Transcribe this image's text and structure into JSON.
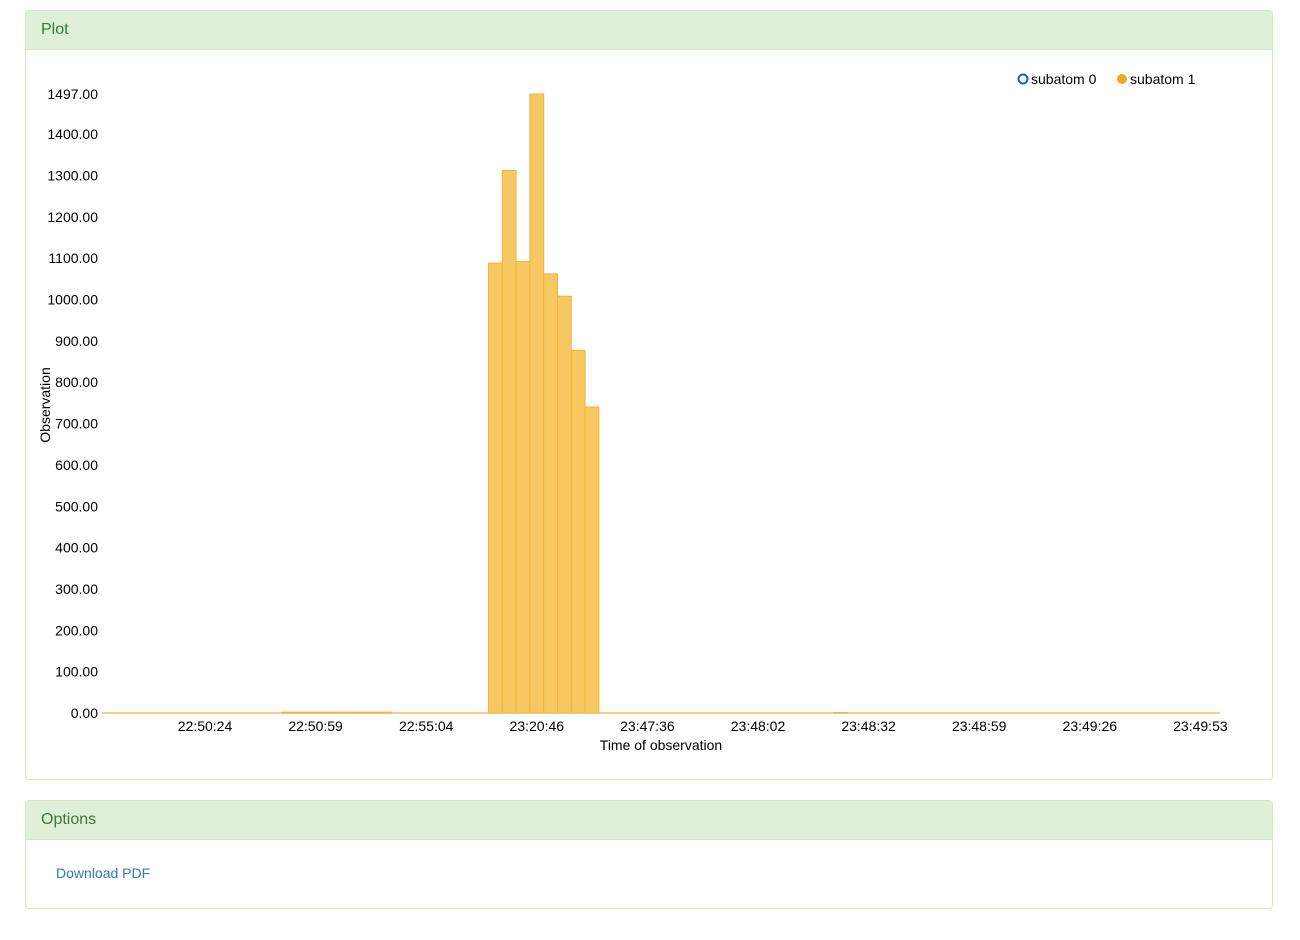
{
  "plot_panel": {
    "title": "Plot"
  },
  "options_panel": {
    "title": "Options",
    "download_label": "Download PDF"
  },
  "chart_data": {
    "type": "bar",
    "xlabel": "Time of observation",
    "ylabel": "Observation",
    "ylim": [
      0,
      1497
    ],
    "y_ticks": [
      0,
      100,
      200,
      300,
      400,
      500,
      600,
      700,
      800,
      900,
      1000,
      1100,
      1200,
      1300,
      1400,
      1497
    ],
    "y_tick_labels": [
      "0.00",
      "100.00",
      "200.00",
      "300.00",
      "400.00",
      "500.00",
      "600.00",
      "700.00",
      "800.00",
      "900.00",
      "1000.00",
      "1100.00",
      "1200.00",
      "1300.00",
      "1400.00",
      "1497.00"
    ],
    "x_tick_labels": [
      "22:50:24",
      "22:50:59",
      "22:55:04",
      "23:20:46",
      "23:47:36",
      "23:48:02",
      "23:48:32",
      "23:48:59",
      "23:49:26",
      "23:49:53"
    ],
    "bin_count": 81,
    "legend_position": "top-right",
    "series": [
      {
        "name": "subatom 0",
        "color": "#1f5bd6",
        "marker": "hollow-circle",
        "values": []
      },
      {
        "name": "subatom 1",
        "color": "#f5a623",
        "marker": "filled-circle",
        "bins": [
          {
            "bin": 13,
            "value": 2
          },
          {
            "bin": 14,
            "value": 2
          },
          {
            "bin": 15,
            "value": 2
          },
          {
            "bin": 16,
            "value": 2
          },
          {
            "bin": 17,
            "value": 2
          },
          {
            "bin": 18,
            "value": 2
          },
          {
            "bin": 19,
            "value": 2
          },
          {
            "bin": 20,
            "value": 2
          },
          {
            "bin": 28,
            "value": 1088
          },
          {
            "bin": 29,
            "value": 1312
          },
          {
            "bin": 30,
            "value": 1092
          },
          {
            "bin": 31,
            "value": 1497
          },
          {
            "bin": 32,
            "value": 1062
          },
          {
            "bin": 33,
            "value": 1008
          },
          {
            "bin": 34,
            "value": 877
          },
          {
            "bin": 35,
            "value": 740
          },
          {
            "bin": 53,
            "value": 1
          }
        ]
      }
    ]
  }
}
